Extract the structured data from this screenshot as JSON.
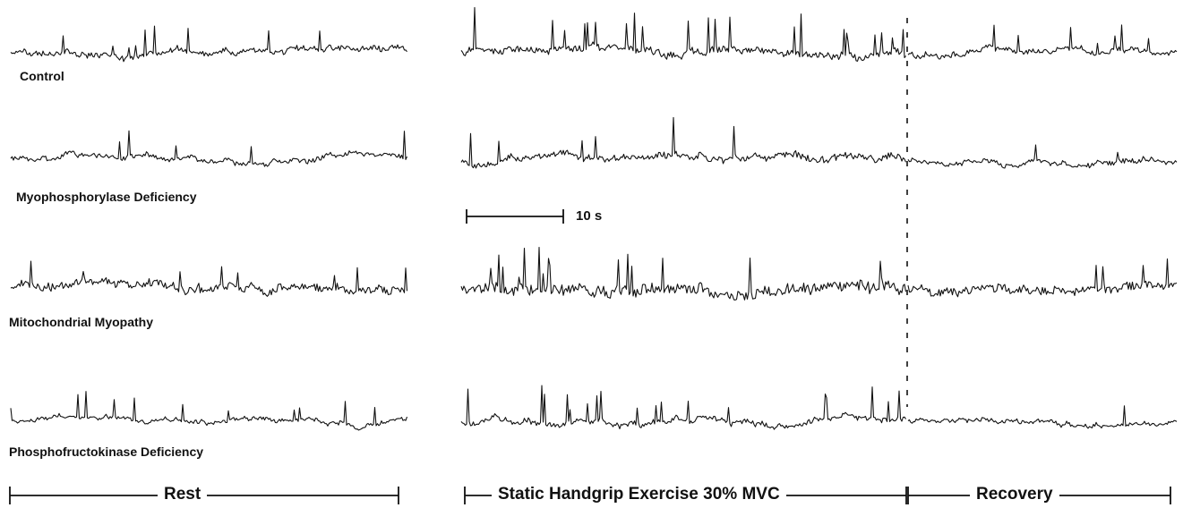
{
  "traces": [
    {
      "label": "Control",
      "rest_seed": 11,
      "exercise_seed": 17,
      "recovery_seed": 23,
      "noise_level": 0.35,
      "spike_level": 1.0
    },
    {
      "label": "Myophosphorylase Deficiency",
      "rest_seed": 31,
      "exercise_seed": 37,
      "recovery_seed": 41,
      "noise_level": 0.3,
      "spike_level": 0.45
    },
    {
      "label": "Mitochondrial Myopathy",
      "rest_seed": 53,
      "exercise_seed": 59,
      "recovery_seed": 61,
      "noise_level": 0.6,
      "spike_level": 0.8
    },
    {
      "label": "Phosphofructokinase Deficiency",
      "rest_seed": 71,
      "exercise_seed": 73,
      "recovery_seed": 79,
      "noise_level": 0.25,
      "spike_level": 1.0
    }
  ],
  "scale_bar": {
    "label": "10 s"
  },
  "phases": {
    "rest": "Rest",
    "exercise": "Static Handgrip Exercise 30% MVC",
    "recovery": "Recovery"
  },
  "colors": {
    "ink": "#111111",
    "background": "#ffffff"
  }
}
